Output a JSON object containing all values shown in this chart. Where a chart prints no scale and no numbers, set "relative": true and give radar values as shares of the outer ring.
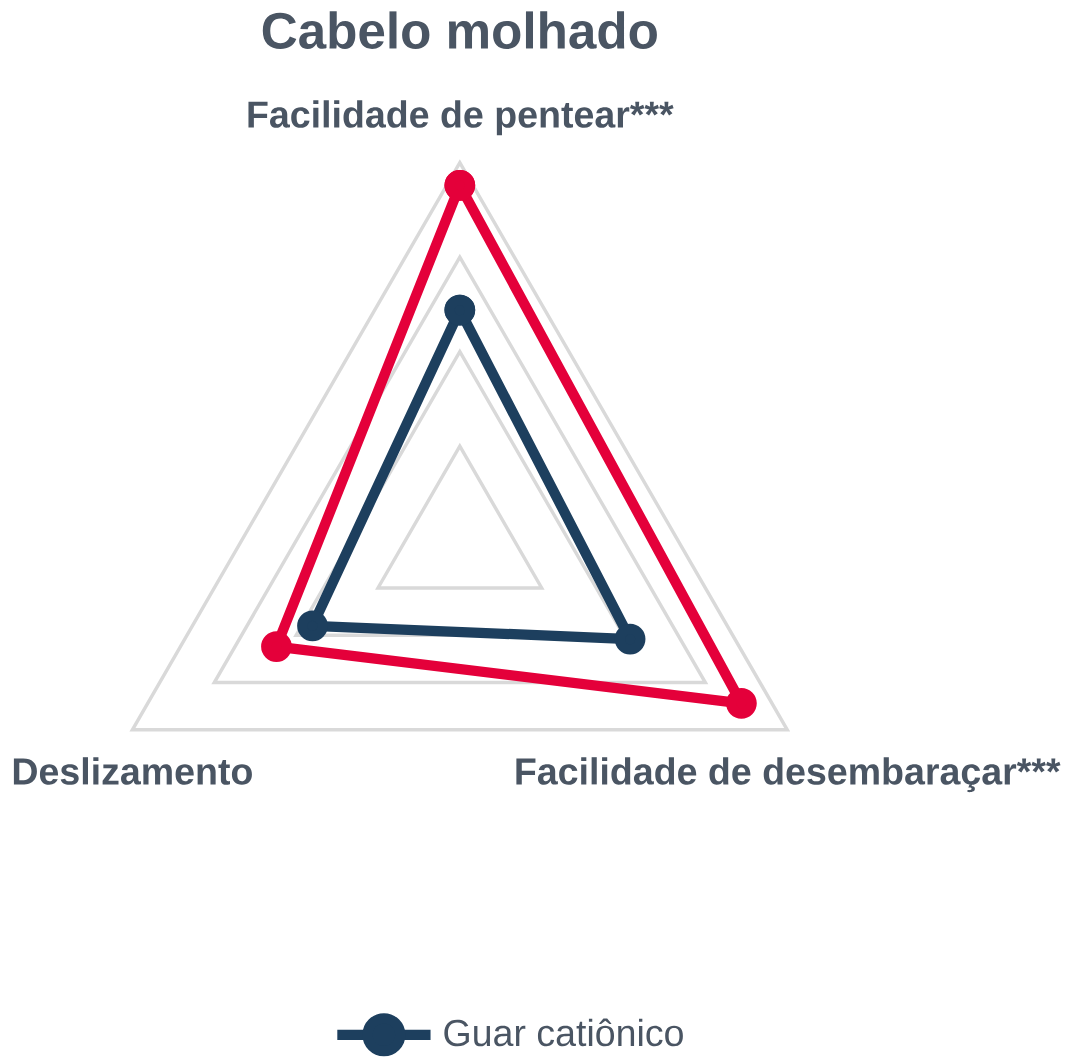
{
  "chart_data": {
    "type": "radar",
    "title": "Cabelo molhado",
    "relative": true,
    "categories": [
      "Facilidade de pentear***",
      "Facilidade de desembaraçar***",
      "Deslizamento"
    ],
    "series": [
      {
        "color": "#e4003a",
        "values": [
          0.94,
          0.86,
          0.56
        ]
      },
      {
        "name": "Guar catiônico",
        "color": "#1d3f5e",
        "values": [
          0.61,
          0.52,
          0.45
        ]
      }
    ],
    "marker": "circle",
    "line_style": "solid",
    "legend": "bottom"
  }
}
